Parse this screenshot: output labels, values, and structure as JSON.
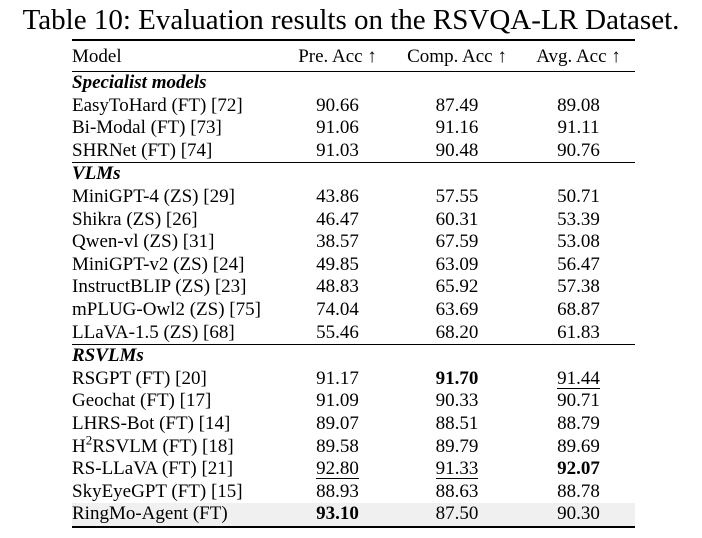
{
  "title": "Table 10: Evaluation results on the RSVQA-LR Dataset.",
  "colors": {
    "background": "#ffffff",
    "text": "#000000",
    "highlight_row": "#f0f0f0",
    "rule": "#000000"
  },
  "table": {
    "columns": [
      "Model",
      "Pre. Acc ↑",
      "Comp. Acc ↑",
      "Avg. Acc ↑"
    ],
    "style_legend": {
      "b": "bold (best result)",
      "u": "underline (second-best result)"
    },
    "sections": [
      {
        "label": "Specialist models",
        "rows": [
          {
            "model": "EasyToHard (FT) [72]",
            "values": [
              "90.66",
              "87.49",
              "89.08"
            ],
            "styles": [
              "",
              "",
              ""
            ],
            "highlight": false
          },
          {
            "model": "Bi-Modal (FT) [73]",
            "values": [
              "91.06",
              "91.16",
              "91.11"
            ],
            "styles": [
              "",
              "",
              ""
            ],
            "highlight": false
          },
          {
            "model": "SHRNet (FT) [74]",
            "values": [
              "91.03",
              "90.48",
              "90.76"
            ],
            "styles": [
              "",
              "",
              ""
            ],
            "highlight": false
          }
        ]
      },
      {
        "label": "VLMs",
        "rows": [
          {
            "model": "MiniGPT-4 (ZS) [29]",
            "values": [
              "43.86",
              "57.55",
              "50.71"
            ],
            "styles": [
              "",
              "",
              ""
            ],
            "highlight": false
          },
          {
            "model": "Shikra (ZS) [26]",
            "values": [
              "46.47",
              "60.31",
              "53.39"
            ],
            "styles": [
              "",
              "",
              ""
            ],
            "highlight": false
          },
          {
            "model": "Qwen-vl (ZS) [31]",
            "values": [
              "38.57",
              "67.59",
              "53.08"
            ],
            "styles": [
              "",
              "",
              ""
            ],
            "highlight": false
          },
          {
            "model": "MiniGPT-v2 (ZS) [24]",
            "values": [
              "49.85",
              "63.09",
              "56.47"
            ],
            "styles": [
              "",
              "",
              ""
            ],
            "highlight": false
          },
          {
            "model": "InstructBLIP (ZS) [23]",
            "values": [
              "48.83",
              "65.92",
              "57.38"
            ],
            "styles": [
              "",
              "",
              ""
            ],
            "highlight": false
          },
          {
            "model": "mPLUG-Owl2 (ZS) [75]",
            "values": [
              "74.04",
              "63.69",
              "68.87"
            ],
            "styles": [
              "",
              "",
              ""
            ],
            "highlight": false
          },
          {
            "model": "LLaVA-1.5 (ZS) [68]",
            "values": [
              "55.46",
              "68.20",
              "61.83"
            ],
            "styles": [
              "",
              "",
              ""
            ],
            "highlight": false
          }
        ]
      },
      {
        "label": "RSVLMs",
        "rows": [
          {
            "model": "RSGPT (FT) [20]",
            "values": [
              "91.17",
              "91.70",
              "91.44"
            ],
            "styles": [
              "",
              "b",
              "u"
            ],
            "highlight": false
          },
          {
            "model": "Geochat (FT) [17]",
            "values": [
              "91.09",
              "90.33",
              "90.71"
            ],
            "styles": [
              "",
              "",
              ""
            ],
            "highlight": false
          },
          {
            "model": "LHRS-Bot (FT) [14]",
            "values": [
              "89.07",
              "88.51",
              "88.79"
            ],
            "styles": [
              "",
              "",
              ""
            ],
            "highlight": false
          },
          {
            "model": "H2RSVLM (FT) [18]",
            "model_base": "H",
            "model_sup": "2",
            "model_rest": "RSVLM (FT) [18]",
            "values": [
              "89.58",
              "89.79",
              "89.69"
            ],
            "styles": [
              "",
              "",
              ""
            ],
            "highlight": false
          },
          {
            "model": "RS-LLaVA (FT) [21]",
            "values": [
              "92.80",
              "91.33",
              "92.07"
            ],
            "styles": [
              "u",
              "u",
              "b"
            ],
            "highlight": false
          },
          {
            "model": "SkyEyeGPT (FT) [15]",
            "values": [
              "88.93",
              "88.63",
              "88.78"
            ],
            "styles": [
              "",
              "",
              ""
            ],
            "highlight": false
          },
          {
            "model": "RingMo-Agent (FT)",
            "values": [
              "93.10",
              "87.50",
              "90.30"
            ],
            "styles": [
              "b",
              "",
              ""
            ],
            "highlight": true
          }
        ]
      }
    ]
  }
}
